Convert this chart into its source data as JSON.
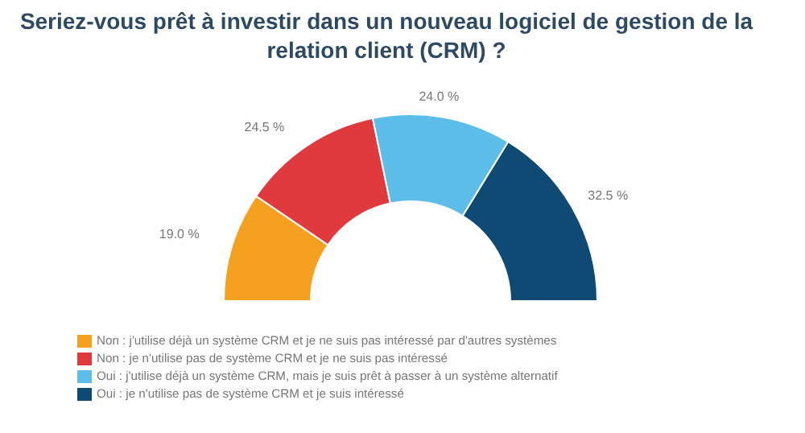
{
  "chart_data": {
    "type": "donut",
    "title": "Seriez-vous prêt à investir dans un nouveau logiciel de gestion de la relation client (CRM) ?",
    "categories": [
      "Non : j'utilise déjà un système CRM et je ne suis pas intéressé par d'autres systèmes",
      "Non : je n'utilise pas de système CRM et je ne suis pas intéressé",
      "Oui : j'utilise déjà un système CRM, mais je suis prêt à passer à un système alternatif",
      "Oui : je n'utilise pas de système CRM et je suis intéressé"
    ],
    "values": [
      19.0,
      24.5,
      24.0,
      32.5
    ],
    "value_labels": [
      "19.0 %",
      "24.5 %",
      "24.0 %",
      "32.5 %"
    ],
    "colors": [
      "#f5a01e",
      "#e0393e",
      "#5bbde8",
      "#0e4a73"
    ],
    "legend": "bottom left"
  }
}
